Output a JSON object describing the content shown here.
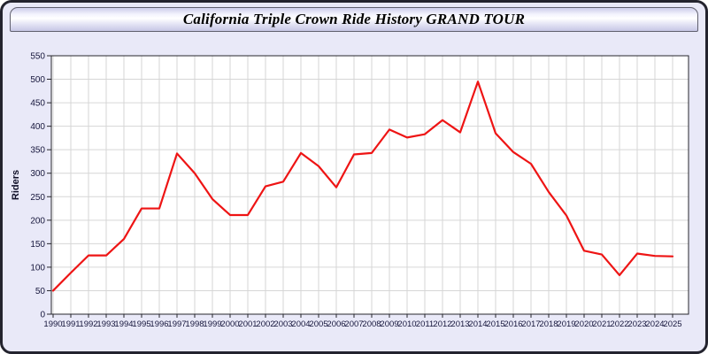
{
  "window": {
    "title": "California Triple Crown Ride History GRAND TOUR"
  },
  "chart_data": {
    "type": "line",
    "title": "California Triple Crown Ride History GRAND TOUR",
    "xlabel": "",
    "ylabel": "Riders",
    "ylim": [
      0,
      550
    ],
    "ytick_step": 50,
    "grid": true,
    "legend": "none",
    "x": [
      1990,
      1991,
      1992,
      1993,
      1994,
      1995,
      1996,
      1997,
      1998,
      1999,
      2000,
      2001,
      2002,
      2003,
      2004,
      2005,
      2006,
      2007,
      2008,
      2009,
      2010,
      2011,
      2012,
      2013,
      2014,
      2015,
      2016,
      2017,
      2018,
      2019,
      2020,
      2021,
      2022,
      2023,
      2024,
      2025
    ],
    "series": [
      {
        "name": "Riders",
        "values": [
          50,
          88,
          125,
          125,
          160,
          225,
          225,
          342,
          300,
          245,
          211,
          211,
          272,
          282,
          343,
          315,
          270,
          340,
          343,
          393,
          376,
          383,
          413,
          387,
          495,
          385,
          345,
          320,
          260,
          210,
          135,
          127,
          83,
          129,
          124,
          123
        ]
      }
    ],
    "colors": {
      "line": "#ee1414",
      "background": "#e9e9f8",
      "plot_background": "#ffffff",
      "gridline": "#d6d6d6",
      "axis": "#26262c",
      "tick_text": "#16163c"
    }
  }
}
